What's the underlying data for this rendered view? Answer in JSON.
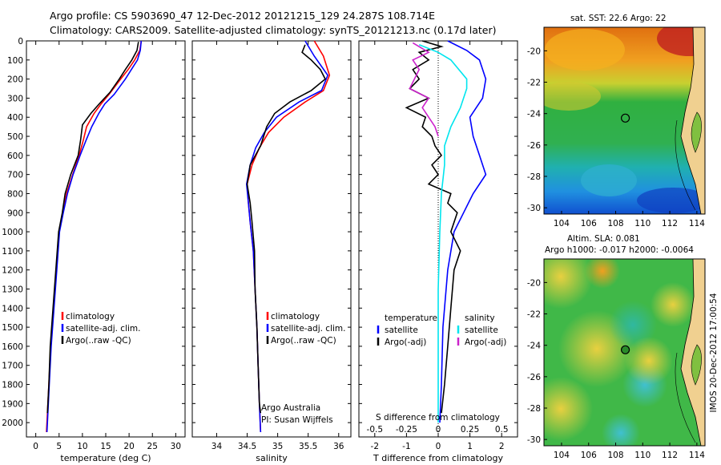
{
  "header": {
    "line1": "Argo profile: CS 5903690_47 12-Dec-2012 20121215_129 24.287S 108.714E",
    "line2": "Climatology: CARS2009. Satellite-adjusted climatology: synTS_20121213.nc (0.17d later)"
  },
  "panel_texts": {
    "argo_australia": "Argo Australia",
    "pi": "PI: Susan Wijffels",
    "s_diff_label": "S difference from climatology",
    "sst_title": "sat. SST: 22.6  Argo: 22",
    "sla_title1": "Altim. SLA: 0.081",
    "sla_title2": "Argo h1000: -0.017 h2000: -0.0064",
    "footer_vertical": "IMOS 20-Dec-2012 17:00:54"
  },
  "colors": {
    "climatology": "#ff0000",
    "satellite": "#0000ff",
    "argo": "#000000",
    "sal_satellite": "#00e5ee",
    "sal_argo": "#cc22cc"
  },
  "chart_data": [
    {
      "type": "line",
      "name": "temperature-profile",
      "xlabel": "temperature (deg C)",
      "ylabel": "",
      "xlim": [
        -2,
        32
      ],
      "ylim": [
        2075,
        0
      ],
      "xticks": [
        0,
        5,
        10,
        15,
        20,
        25,
        30
      ],
      "yticks": [
        0,
        100,
        200,
        300,
        400,
        500,
        600,
        700,
        800,
        900,
        1000,
        1100,
        1200,
        1300,
        1400,
        1500,
        1600,
        1700,
        1800,
        1900,
        2000
      ],
      "legend": [
        "climatology",
        "satellite-adj. clim.",
        "Argo(..raw -QC)"
      ],
      "legend_placement": "lower-center",
      "series": [
        {
          "name": "climatology",
          "color": "#ff0000",
          "points": [
            [
              22.6,
              0
            ],
            [
              22.3,
              50
            ],
            [
              21.2,
              100
            ],
            [
              19.8,
              150
            ],
            [
              18.2,
              200
            ],
            [
              15.7,
              280
            ],
            [
              14.0,
              330
            ],
            [
              12.5,
              380
            ],
            [
              10.9,
              450
            ],
            [
              10.2,
              520
            ],
            [
              9.3,
              600
            ],
            [
              7.9,
              700
            ],
            [
              6.6,
              800
            ],
            [
              5.8,
              900
            ],
            [
              5.0,
              1000
            ],
            [
              4.4,
              1200
            ],
            [
              3.8,
              1400
            ],
            [
              3.2,
              1600
            ],
            [
              2.8,
              1800
            ],
            [
              2.4,
              2000
            ],
            [
              2.3,
              2050
            ]
          ]
        },
        {
          "name": "satellite-adj. clim.",
          "color": "#0000ff",
          "points": [
            [
              22.6,
              0
            ],
            [
              22.4,
              50
            ],
            [
              21.8,
              100
            ],
            [
              20.5,
              150
            ],
            [
              19.2,
              200
            ],
            [
              16.8,
              280
            ],
            [
              14.8,
              330
            ],
            [
              13.5,
              380
            ],
            [
              12.0,
              450
            ],
            [
              10.8,
              520
            ],
            [
              9.5,
              600
            ],
            [
              8.0,
              700
            ],
            [
              6.8,
              800
            ],
            [
              5.9,
              900
            ],
            [
              5.1,
              1000
            ],
            [
              4.5,
              1200
            ],
            [
              3.9,
              1400
            ],
            [
              3.3,
              1600
            ],
            [
              2.9,
              1800
            ],
            [
              2.5,
              2000
            ],
            [
              2.4,
              2050
            ]
          ]
        },
        {
          "name": "Argo(..raw -QC)",
          "color": "#000000",
          "points": [
            [
              22.0,
              5
            ],
            [
              21.7,
              50
            ],
            [
              20.6,
              100
            ],
            [
              19.2,
              150
            ],
            [
              17.9,
              200
            ],
            [
              15.9,
              270
            ],
            [
              13.6,
              330
            ],
            [
              11.8,
              380
            ],
            [
              10.0,
              440
            ],
            [
              9.6,
              520
            ],
            [
              9.1,
              600
            ],
            [
              7.5,
              700
            ],
            [
              6.3,
              800
            ],
            [
              5.7,
              900
            ],
            [
              4.9,
              1000
            ],
            [
              4.3,
              1200
            ],
            [
              3.7,
              1400
            ],
            [
              3.1,
              1600
            ],
            [
              2.8,
              1800
            ],
            [
              2.5,
              1950
            ]
          ]
        }
      ]
    },
    {
      "type": "line",
      "name": "salinity-profile",
      "xlabel": "salinity",
      "ylabel": "",
      "xlim": [
        33.6,
        36.2
      ],
      "ylim": [
        2075,
        0
      ],
      "xticks": [
        34,
        34.5,
        35,
        35.5,
        36
      ],
      "legend": [
        "climatology",
        "satellite-adj. clim.",
        "Argo(..raw -QC)"
      ],
      "legend_placement": "lower-right",
      "series": [
        {
          "name": "climatology",
          "color": "#ff0000",
          "points": [
            [
              35.6,
              0
            ],
            [
              35.75,
              80
            ],
            [
              35.85,
              180
            ],
            [
              35.75,
              260
            ],
            [
              35.45,
              320
            ],
            [
              35.1,
              400
            ],
            [
              34.85,
              480
            ],
            [
              34.7,
              560
            ],
            [
              34.58,
              650
            ],
            [
              34.5,
              750
            ],
            [
              34.52,
              850
            ],
            [
              34.55,
              950
            ],
            [
              34.6,
              1100
            ],
            [
              34.63,
              1300
            ],
            [
              34.66,
              1500
            ],
            [
              34.68,
              1700
            ],
            [
              34.7,
              1900
            ],
            [
              34.72,
              2050
            ]
          ]
        },
        {
          "name": "satellite-adj. clim.",
          "color": "#0000ff",
          "points": [
            [
              35.45,
              0
            ],
            [
              35.6,
              80
            ],
            [
              35.82,
              180
            ],
            [
              35.72,
              260
            ],
            [
              35.35,
              320
            ],
            [
              34.98,
              400
            ],
            [
              34.78,
              480
            ],
            [
              34.64,
              560
            ],
            [
              34.55,
              650
            ],
            [
              34.49,
              750
            ],
            [
              34.52,
              850
            ],
            [
              34.55,
              950
            ],
            [
              34.6,
              1100
            ],
            [
              34.63,
              1300
            ],
            [
              34.66,
              1500
            ],
            [
              34.68,
              1700
            ],
            [
              34.7,
              1900
            ],
            [
              34.72,
              2050
            ]
          ]
        },
        {
          "name": "Argo(..raw -QC)",
          "color": "#000000",
          "points": [
            [
              35.45,
              20
            ],
            [
              35.4,
              60
            ],
            [
              35.55,
              100
            ],
            [
              35.7,
              150
            ],
            [
              35.78,
              200
            ],
            [
              35.55,
              260
            ],
            [
              35.2,
              320
            ],
            [
              34.95,
              380
            ],
            [
              34.82,
              450
            ],
            [
              34.72,
              550
            ],
            [
              34.55,
              650
            ],
            [
              34.5,
              750
            ],
            [
              34.55,
              850
            ],
            [
              34.58,
              950
            ],
            [
              34.62,
              1100
            ],
            [
              34.63,
              1300
            ],
            [
              34.66,
              1500
            ],
            [
              34.68,
              1700
            ],
            [
              34.7,
              1900
            ],
            [
              34.72,
              1950
            ]
          ]
        }
      ]
    },
    {
      "type": "line",
      "name": "difference-profile",
      "xlabel": "T difference from climatology",
      "ylabel": "",
      "top_axis_label": "S difference from climatology",
      "xlim": [
        -2.5,
        2.5
      ],
      "ylim": [
        2075,
        0
      ],
      "xticks": [
        -2,
        -1,
        0,
        1,
        2
      ],
      "top_xticks": [
        "-0.5",
        "-0.25",
        "0",
        "0.25",
        "0.5"
      ],
      "legend_left_title": "temperature",
      "legend_right_title": "salinity",
      "legend": [
        "satellite",
        "Argo(-adj)",
        "satellite",
        "Argo(-adj)"
      ],
      "legend_placement": "lower-center",
      "series": [
        {
          "name": "temperature satellite",
          "color": "#0000ff",
          "points": [
            [
              0.3,
              0
            ],
            [
              0.9,
              50
            ],
            [
              1.3,
              100
            ],
            [
              1.5,
              200
            ],
            [
              1.4,
              300
            ],
            [
              1.0,
              400
            ],
            [
              1.1,
              500
            ],
            [
              1.3,
              600
            ],
            [
              1.5,
              700
            ],
            [
              1.1,
              800
            ],
            [
              0.8,
              900
            ],
            [
              0.5,
              1000
            ],
            [
              0.3,
              1200
            ],
            [
              0.15,
              1500
            ],
            [
              0.1,
              1800
            ],
            [
              0.05,
              2000
            ]
          ]
        },
        {
          "name": "temperature Argo(-adj)",
          "color": "#000000",
          "points": [
            [
              -0.5,
              0
            ],
            [
              0.1,
              30
            ],
            [
              -0.6,
              60
            ],
            [
              -0.3,
              100
            ],
            [
              -0.8,
              150
            ],
            [
              -0.6,
              200
            ],
            [
              -0.9,
              250
            ],
            [
              -0.3,
              300
            ],
            [
              -1.0,
              350
            ],
            [
              -0.4,
              400
            ],
            [
              -0.5,
              450
            ],
            [
              -0.2,
              500
            ],
            [
              -0.1,
              550
            ],
            [
              0.1,
              600
            ],
            [
              -0.2,
              650
            ],
            [
              0.0,
              700
            ],
            [
              -0.3,
              750
            ],
            [
              0.4,
              800
            ],
            [
              0.3,
              850
            ],
            [
              0.6,
              900
            ],
            [
              0.4,
              1000
            ],
            [
              0.7,
              1100
            ],
            [
              0.5,
              1200
            ],
            [
              0.4,
              1400
            ],
            [
              0.3,
              1600
            ],
            [
              0.2,
              1800
            ],
            [
              0.1,
              1950
            ]
          ]
        },
        {
          "name": "salinity satellite",
          "color": "#00e5ee",
          "points": [
            [
              -0.6,
              20
            ],
            [
              0.0,
              60
            ],
            [
              0.4,
              100
            ],
            [
              0.9,
              200
            ],
            [
              0.9,
              250
            ],
            [
              0.7,
              350
            ],
            [
              0.4,
              450
            ],
            [
              0.2,
              550
            ],
            [
              0.2,
              650
            ],
            [
              0.1,
              800
            ],
            [
              0.05,
              1000
            ],
            [
              0.0,
              1300
            ],
            [
              0.0,
              1600
            ],
            [
              0.0,
              2000
            ]
          ]
        },
        {
          "name": "salinity Argo(-adj)",
          "color": "#cc22cc",
          "points": [
            [
              -0.8,
              10
            ],
            [
              -0.3,
              60
            ],
            [
              -0.8,
              100
            ],
            [
              -0.6,
              150
            ],
            [
              -0.9,
              250
            ],
            [
              -0.3,
              300
            ],
            [
              -0.5,
              350
            ],
            [
              -0.3,
              400
            ],
            [
              -0.1,
              450
            ],
            [
              0.0,
              500
            ]
          ]
        }
      ]
    }
  ],
  "maps": [
    {
      "name": "sst-map",
      "xticks": [
        "104",
        "106",
        "108",
        "110",
        "112",
        "114"
      ],
      "yticks": [
        "-20",
        "-22",
        "-24",
        "-26",
        "-28",
        "-30"
      ],
      "argo_position": {
        "lon": 108.714,
        "lat": -24.287
      }
    },
    {
      "name": "sla-map",
      "xticks": [
        "104",
        "106",
        "108",
        "110",
        "112",
        "114"
      ],
      "yticks": [
        "-20",
        "-22",
        "-24",
        "-26",
        "-28",
        "-30"
      ],
      "argo_position": {
        "lon": 108.714,
        "lat": -24.287
      }
    }
  ]
}
